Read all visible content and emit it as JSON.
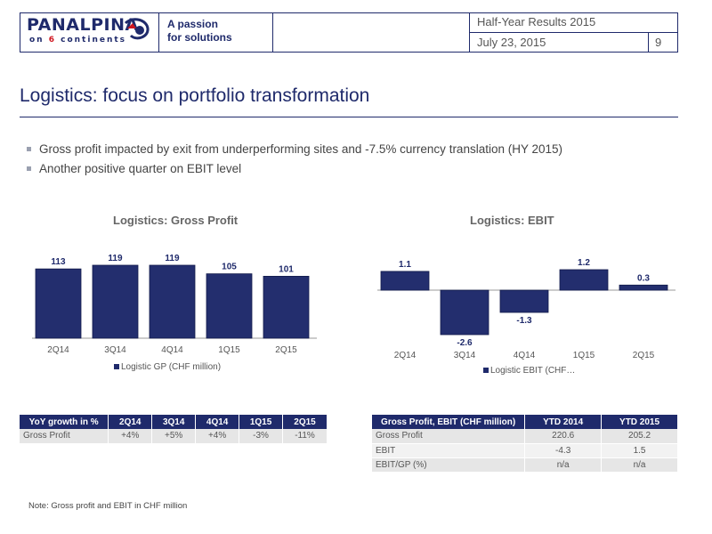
{
  "header": {
    "logo_text": "PANALPINA",
    "logo_sub_pre": "on ",
    "logo_sub_num": "6",
    "logo_sub_post": " continents",
    "tagline_line1": "A passion",
    "tagline_line2": "for solutions",
    "doc_title": "Half-Year Results 2015",
    "date": "July 23, 2015",
    "page": "9"
  },
  "page_title": "Logistics: focus on portfolio transformation",
  "bullets": [
    "Gross profit impacted by exit from underperforming sites and -7.5% currency translation (HY 2015)",
    "Another positive quarter on EBIT level"
  ],
  "colors": {
    "brand": "#1f2a6b",
    "brand_red": "#d0161f",
    "bar": "#232e6e"
  },
  "chart_data": [
    {
      "type": "bar",
      "title": "Logistics: Gross Profit",
      "categories": [
        "2Q14",
        "3Q14",
        "4Q14",
        "1Q15",
        "2Q15"
      ],
      "series": [
        {
          "name": "Logistic GP (CHF million)",
          "values": [
            113,
            119,
            119,
            105,
            101
          ]
        }
      ],
      "labels": [
        "113",
        "119",
        "119",
        "105",
        "101"
      ],
      "ylim": [
        0,
        119
      ],
      "legend": "bottom"
    },
    {
      "type": "bar",
      "title": "Logistics: EBIT",
      "categories": [
        "2Q14",
        "3Q14",
        "4Q14",
        "1Q15",
        "2Q15"
      ],
      "series": [
        {
          "name": "Logistic EBIT (CHF…",
          "values": [
            1.1,
            -2.6,
            -1.3,
            1.2,
            0.3
          ]
        }
      ],
      "labels": [
        "1.1",
        "-2.6",
        "-1.3",
        "1.2",
        "0.3"
      ],
      "ylim": [
        -2.6,
        1.2
      ],
      "legend": "bottom"
    }
  ],
  "yoy_table": {
    "headers": [
      "YoY growth in %",
      "2Q14",
      "3Q14",
      "4Q14",
      "1Q15",
      "2Q15"
    ],
    "rows": [
      [
        "Gross Profit",
        "+4%",
        "+5%",
        "+4%",
        "-3%",
        "-11%"
      ]
    ]
  },
  "ytd_table": {
    "headers": [
      "Gross Profit, EBIT (CHF million)",
      "YTD 2014",
      "YTD 2015"
    ],
    "rows": [
      [
        "Gross Profit",
        "220.6",
        "205.2"
      ],
      [
        "EBIT",
        "-4.3",
        "1.5"
      ],
      [
        "EBIT/GP (%)",
        "n/a",
        "n/a"
      ]
    ]
  },
  "note": "Note: Gross profit and EBIT in CHF million"
}
